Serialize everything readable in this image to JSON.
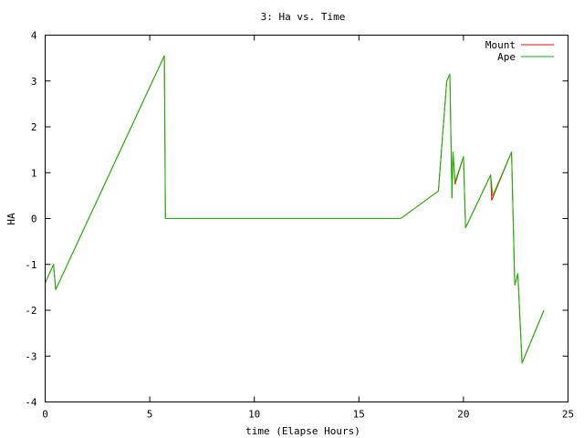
{
  "chart_data": {
    "type": "line",
    "title": "3: Ha vs. Time",
    "xlabel": "time (Elapse Hours)",
    "ylabel": "HA",
    "xlim": [
      0,
      25
    ],
    "ylim": [
      -4,
      4
    ],
    "x_ticks": [
      0,
      5,
      10,
      15,
      20,
      25
    ],
    "y_ticks": [
      -4,
      -3,
      -2,
      -1,
      0,
      1,
      2,
      3,
      4
    ],
    "grid": false,
    "legend_position": "top-right",
    "series": [
      {
        "name": "Mount",
        "color": "#ff0000",
        "points": [
          [
            0,
            -1.4
          ],
          [
            0.4,
            -1.0
          ],
          [
            0.5,
            -1.55
          ],
          [
            5.7,
            3.55
          ],
          [
            5.75,
            0.0
          ],
          [
            17.0,
            0.0
          ],
          [
            18.8,
            0.6
          ],
          [
            19.2,
            3.0
          ],
          [
            19.35,
            3.15
          ],
          [
            19.45,
            0.45
          ],
          [
            19.5,
            1.45
          ],
          [
            19.6,
            0.75
          ],
          [
            20.0,
            1.35
          ],
          [
            20.1,
            -0.2
          ],
          [
            21.3,
            0.95
          ],
          [
            21.35,
            0.4
          ],
          [
            22.3,
            1.45
          ],
          [
            22.45,
            -1.45
          ],
          [
            22.6,
            -1.2
          ],
          [
            22.8,
            -3.15
          ],
          [
            23.85,
            -2.0
          ]
        ]
      },
      {
        "name": "Ape",
        "color": "#00c000",
        "points": [
          [
            0,
            -1.4
          ],
          [
            0.4,
            -1.0
          ],
          [
            0.5,
            -1.55
          ],
          [
            5.7,
            3.55
          ],
          [
            5.75,
            0.0
          ],
          [
            17.0,
            0.0
          ],
          [
            18.8,
            0.6
          ],
          [
            19.2,
            3.0
          ],
          [
            19.35,
            3.15
          ],
          [
            19.45,
            0.45
          ],
          [
            19.5,
            1.45
          ],
          [
            19.6,
            0.8
          ],
          [
            20.0,
            1.35
          ],
          [
            20.1,
            -0.2
          ],
          [
            21.3,
            0.95
          ],
          [
            21.4,
            0.5
          ],
          [
            22.3,
            1.45
          ],
          [
            22.45,
            -1.45
          ],
          [
            22.6,
            -1.2
          ],
          [
            22.8,
            -3.15
          ],
          [
            23.85,
            -2.0
          ]
        ]
      }
    ]
  }
}
